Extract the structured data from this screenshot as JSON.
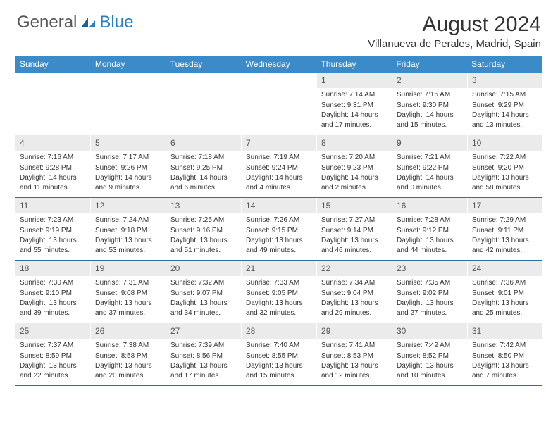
{
  "logo": {
    "general": "General",
    "blue": "Blue"
  },
  "title": "August 2024",
  "location": "Villanueva de Perales, Madrid, Spain",
  "colors": {
    "header_bg": "#3b8bc8",
    "daynum_bg": "#ebebeb",
    "border": "#2a6fa8",
    "logo_blue": "#2a7ec4",
    "logo_gray": "#585858"
  },
  "weekdays": [
    "Sunday",
    "Monday",
    "Tuesday",
    "Wednesday",
    "Thursday",
    "Friday",
    "Saturday"
  ],
  "weeks": [
    [
      {
        "n": "",
        "sr": "",
        "ss": "",
        "dl": ""
      },
      {
        "n": "",
        "sr": "",
        "ss": "",
        "dl": ""
      },
      {
        "n": "",
        "sr": "",
        "ss": "",
        "dl": ""
      },
      {
        "n": "",
        "sr": "",
        "ss": "",
        "dl": ""
      },
      {
        "n": "1",
        "sr": "Sunrise: 7:14 AM",
        "ss": "Sunset: 9:31 PM",
        "dl": "Daylight: 14 hours and 17 minutes."
      },
      {
        "n": "2",
        "sr": "Sunrise: 7:15 AM",
        "ss": "Sunset: 9:30 PM",
        "dl": "Daylight: 14 hours and 15 minutes."
      },
      {
        "n": "3",
        "sr": "Sunrise: 7:15 AM",
        "ss": "Sunset: 9:29 PM",
        "dl": "Daylight: 14 hours and 13 minutes."
      }
    ],
    [
      {
        "n": "4",
        "sr": "Sunrise: 7:16 AM",
        "ss": "Sunset: 9:28 PM",
        "dl": "Daylight: 14 hours and 11 minutes."
      },
      {
        "n": "5",
        "sr": "Sunrise: 7:17 AM",
        "ss": "Sunset: 9:26 PM",
        "dl": "Daylight: 14 hours and 9 minutes."
      },
      {
        "n": "6",
        "sr": "Sunrise: 7:18 AM",
        "ss": "Sunset: 9:25 PM",
        "dl": "Daylight: 14 hours and 6 minutes."
      },
      {
        "n": "7",
        "sr": "Sunrise: 7:19 AM",
        "ss": "Sunset: 9:24 PM",
        "dl": "Daylight: 14 hours and 4 minutes."
      },
      {
        "n": "8",
        "sr": "Sunrise: 7:20 AM",
        "ss": "Sunset: 9:23 PM",
        "dl": "Daylight: 14 hours and 2 minutes."
      },
      {
        "n": "9",
        "sr": "Sunrise: 7:21 AM",
        "ss": "Sunset: 9:22 PM",
        "dl": "Daylight: 14 hours and 0 minutes."
      },
      {
        "n": "10",
        "sr": "Sunrise: 7:22 AM",
        "ss": "Sunset: 9:20 PM",
        "dl": "Daylight: 13 hours and 58 minutes."
      }
    ],
    [
      {
        "n": "11",
        "sr": "Sunrise: 7:23 AM",
        "ss": "Sunset: 9:19 PM",
        "dl": "Daylight: 13 hours and 55 minutes."
      },
      {
        "n": "12",
        "sr": "Sunrise: 7:24 AM",
        "ss": "Sunset: 9:18 PM",
        "dl": "Daylight: 13 hours and 53 minutes."
      },
      {
        "n": "13",
        "sr": "Sunrise: 7:25 AM",
        "ss": "Sunset: 9:16 PM",
        "dl": "Daylight: 13 hours and 51 minutes."
      },
      {
        "n": "14",
        "sr": "Sunrise: 7:26 AM",
        "ss": "Sunset: 9:15 PM",
        "dl": "Daylight: 13 hours and 49 minutes."
      },
      {
        "n": "15",
        "sr": "Sunrise: 7:27 AM",
        "ss": "Sunset: 9:14 PM",
        "dl": "Daylight: 13 hours and 46 minutes."
      },
      {
        "n": "16",
        "sr": "Sunrise: 7:28 AM",
        "ss": "Sunset: 9:12 PM",
        "dl": "Daylight: 13 hours and 44 minutes."
      },
      {
        "n": "17",
        "sr": "Sunrise: 7:29 AM",
        "ss": "Sunset: 9:11 PM",
        "dl": "Daylight: 13 hours and 42 minutes."
      }
    ],
    [
      {
        "n": "18",
        "sr": "Sunrise: 7:30 AM",
        "ss": "Sunset: 9:10 PM",
        "dl": "Daylight: 13 hours and 39 minutes."
      },
      {
        "n": "19",
        "sr": "Sunrise: 7:31 AM",
        "ss": "Sunset: 9:08 PM",
        "dl": "Daylight: 13 hours and 37 minutes."
      },
      {
        "n": "20",
        "sr": "Sunrise: 7:32 AM",
        "ss": "Sunset: 9:07 PM",
        "dl": "Daylight: 13 hours and 34 minutes."
      },
      {
        "n": "21",
        "sr": "Sunrise: 7:33 AM",
        "ss": "Sunset: 9:05 PM",
        "dl": "Daylight: 13 hours and 32 minutes."
      },
      {
        "n": "22",
        "sr": "Sunrise: 7:34 AM",
        "ss": "Sunset: 9:04 PM",
        "dl": "Daylight: 13 hours and 29 minutes."
      },
      {
        "n": "23",
        "sr": "Sunrise: 7:35 AM",
        "ss": "Sunset: 9:02 PM",
        "dl": "Daylight: 13 hours and 27 minutes."
      },
      {
        "n": "24",
        "sr": "Sunrise: 7:36 AM",
        "ss": "Sunset: 9:01 PM",
        "dl": "Daylight: 13 hours and 25 minutes."
      }
    ],
    [
      {
        "n": "25",
        "sr": "Sunrise: 7:37 AM",
        "ss": "Sunset: 8:59 PM",
        "dl": "Daylight: 13 hours and 22 minutes."
      },
      {
        "n": "26",
        "sr": "Sunrise: 7:38 AM",
        "ss": "Sunset: 8:58 PM",
        "dl": "Daylight: 13 hours and 20 minutes."
      },
      {
        "n": "27",
        "sr": "Sunrise: 7:39 AM",
        "ss": "Sunset: 8:56 PM",
        "dl": "Daylight: 13 hours and 17 minutes."
      },
      {
        "n": "28",
        "sr": "Sunrise: 7:40 AM",
        "ss": "Sunset: 8:55 PM",
        "dl": "Daylight: 13 hours and 15 minutes."
      },
      {
        "n": "29",
        "sr": "Sunrise: 7:41 AM",
        "ss": "Sunset: 8:53 PM",
        "dl": "Daylight: 13 hours and 12 minutes."
      },
      {
        "n": "30",
        "sr": "Sunrise: 7:42 AM",
        "ss": "Sunset: 8:52 PM",
        "dl": "Daylight: 13 hours and 10 minutes."
      },
      {
        "n": "31",
        "sr": "Sunrise: 7:42 AM",
        "ss": "Sunset: 8:50 PM",
        "dl": "Daylight: 13 hours and 7 minutes."
      }
    ]
  ]
}
